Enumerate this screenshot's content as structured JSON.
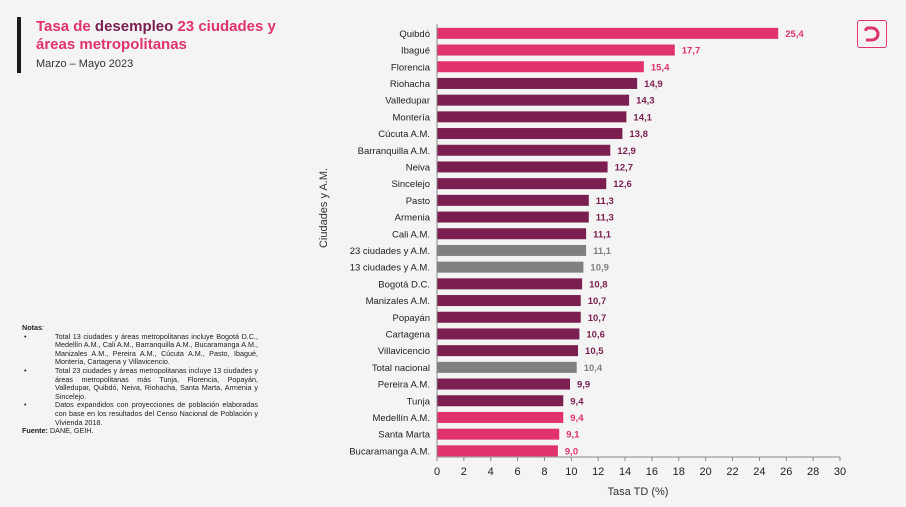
{
  "header": {
    "title_part1": "Tasa de",
    "title_part2": "desempleo",
    "title_part3": "23 ciudades y áreas metropolitanas",
    "subtitle": "Marzo – Mayo 2023"
  },
  "logo": {
    "icon": "dane-d-logo",
    "color": "#e0336b"
  },
  "notes": {
    "heading": "Notas",
    "items": [
      "Total 13 ciudades y áreas metropolitanas incluye Bogotá D.C., Medellín A.M., Cali A.M., Barranquilla A.M., Bucaramanga A.M., Manizales A.M., Pereira A.M., Cúcuta A.M., Pasto, Ibagué, Montería, Cartagena y Villavicencio.",
      "Total 23 ciudades y áreas metropolitanas incluye 13 ciudades y áreas metropolitanas más Tunja, Florencia, Popayán, Valledupar, Quibdó, Neiva, Riohacha, Santa Marta, Armenia y Sincelejo.",
      "Datos expandidos con proyecciones de población elaboradas con base en los resultados del Censo Nacional de Población y Vivienda 2018."
    ],
    "source_label": "Fuente:",
    "source_text": "DANE, GEIH."
  },
  "colors": {
    "default": "#7a1f4f",
    "highlight": "#e0336b",
    "total": "#808080",
    "default_label": "#7a1f4f",
    "total_label": "#808080"
  },
  "chart_data": {
    "type": "bar",
    "orientation": "horizontal",
    "xlabel": "Tasa TD (%)",
    "ylabel": "Ciudades y A.M.",
    "xlim": [
      0,
      30
    ],
    "xticks": [
      "0",
      "2",
      "4",
      "6",
      "8",
      "10",
      "12",
      "14",
      "16",
      "18",
      "20",
      "22",
      "24",
      "26",
      "28",
      "30"
    ],
    "grid": false,
    "categories": [
      "Quibdó",
      "Ibagué",
      "Florencia",
      "Riohacha",
      "Valledupar",
      "Montería",
      "Cúcuta A.M.",
      "Barranquilla A.M.",
      "Neiva",
      "Sincelejo",
      "Pasto",
      "Armenia",
      "Cali A.M.",
      "23 ciudades y A.M.",
      "13 ciudades y A.M.",
      "Bogotá D.C.",
      "Manizales A.M.",
      "Popayán",
      "Cartagena",
      "Villavicencio",
      "Total nacional",
      "Pereira A.M.",
      "Tunja",
      "Medellín A.M.",
      "Santa Marta",
      "Bucaramanga A.M."
    ],
    "values": [
      25.4,
      17.7,
      15.4,
      14.9,
      14.3,
      14.1,
      13.8,
      12.9,
      12.7,
      12.6,
      11.3,
      11.3,
      11.1,
      11.1,
      10.9,
      10.8,
      10.7,
      10.7,
      10.6,
      10.5,
      10.4,
      9.9,
      9.4,
      9.4,
      9.1,
      9.0
    ],
    "value_labels": [
      "25,4",
      "17,7",
      "15,4",
      "14,9",
      "14,3",
      "14,1",
      "13,8",
      "12,9",
      "12,7",
      "12,6",
      "11,3",
      "11,3",
      "11,1",
      "11,1",
      "10,9",
      "10,8",
      "10,7",
      "10,7",
      "10,6",
      "10,5",
      "10,4",
      "9,9",
      "9,4",
      "9,4",
      "9,1",
      "9,0"
    ],
    "bar_groups": [
      "highlight",
      "highlight",
      "highlight",
      "default",
      "default",
      "default",
      "default",
      "default",
      "default",
      "default",
      "default",
      "default",
      "default",
      "total",
      "total",
      "default",
      "default",
      "default",
      "default",
      "default",
      "total",
      "default",
      "default",
      "highlight",
      "highlight",
      "highlight"
    ]
  }
}
